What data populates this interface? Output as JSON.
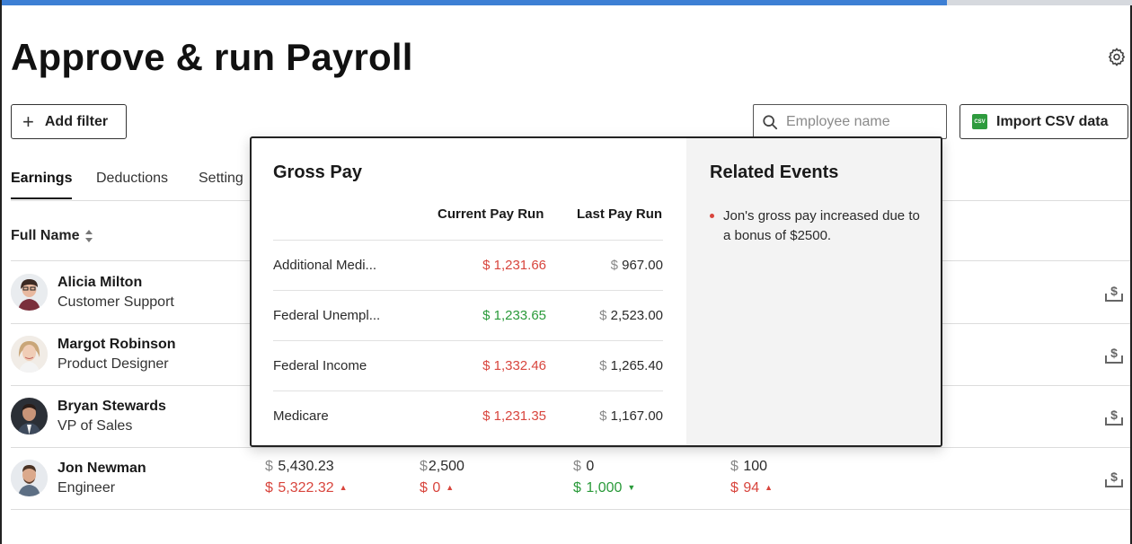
{
  "progress": {
    "percent": 83.5,
    "track_color": "#d6d9de",
    "fill_color": "#3d7fd4"
  },
  "header": {
    "title": "Approve & run Payroll"
  },
  "toolbar": {
    "add_filter_label": "Add filter",
    "search_placeholder": "Employee name",
    "import_label": "Import CSV data",
    "csv_icon_text": "CSV"
  },
  "tabs": [
    {
      "label": "Earnings",
      "active": true
    },
    {
      "label": "Deductions",
      "active": false
    },
    {
      "label": "Setting",
      "active": false
    }
  ],
  "table": {
    "full_name_header": "Full Name"
  },
  "employees": [
    {
      "name": "Alicia Milton",
      "role": "Customer Support"
    },
    {
      "name": "Margot Robinson",
      "role": "Product Designer"
    },
    {
      "name": "Bryan Stewards",
      "role": "VP of Sales"
    },
    {
      "name": "Jon Newman",
      "role": "Engineer",
      "values": [
        {
          "top": "5,430.23",
          "bottom": "5,322.32",
          "bottom_color": "red",
          "trend": "up"
        },
        {
          "top": "2,500",
          "bottom": "0",
          "bottom_color": "red",
          "trend": "up"
        },
        {
          "top": "0",
          "bottom": "1,000",
          "bottom_color": "green",
          "trend": "down"
        },
        {
          "top": "100",
          "bottom": "94",
          "bottom_color": "red",
          "trend": "up"
        }
      ]
    }
  ],
  "popup": {
    "title": "Gross Pay",
    "current_header": "Current Pay Run",
    "last_header": "Last Pay Run",
    "rows": [
      {
        "label": "Additional Medi...",
        "current": "1,231.66",
        "current_color": "red",
        "last": "967.00"
      },
      {
        "label": "Federal Unempl...",
        "current": "1,233.65",
        "current_color": "green",
        "last": "2,523.00"
      },
      {
        "label": "Federal Income",
        "current": "1,332.46",
        "current_color": "red",
        "last": "1,265.40"
      },
      {
        "label": "Medicare",
        "current": "1,231.35",
        "current_color": "red",
        "last": "1,167.00"
      }
    ],
    "related_title": "Related Events",
    "events": [
      "Jon's gross pay increased due to a bonus of $2500."
    ]
  },
  "currency_symbol": "$",
  "colors": {
    "red": "#d8453d",
    "green": "#2a9a3a"
  },
  "icons": {
    "settings": "gear-icon",
    "search": "search-icon",
    "add": "plus-icon",
    "csv": "csv-file-icon",
    "sort": "sort-icon",
    "pay": "pay-out-icon"
  }
}
